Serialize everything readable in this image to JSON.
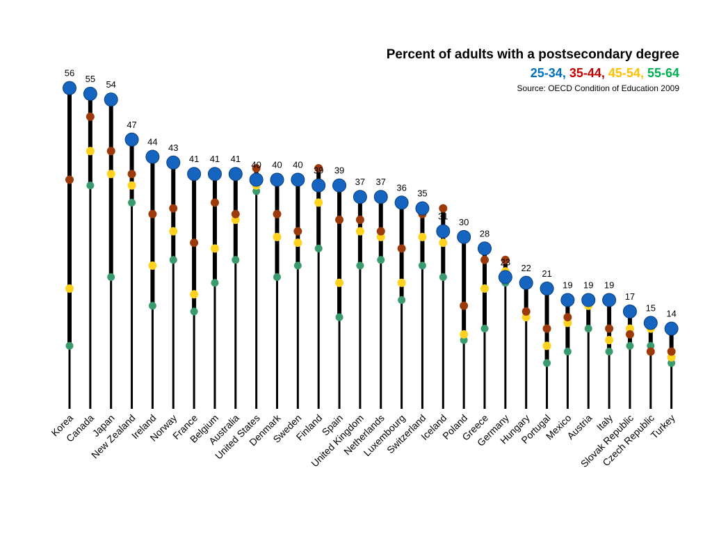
{
  "chart_data": {
    "type": "scatter",
    "title": "Percent of adults with a postsecondary degree",
    "source": "Source: OECD Condition of Education 2009",
    "legend_placement": "top-right",
    "series": [
      {
        "name": "25-34",
        "color": "#1565C0"
      },
      {
        "name": "35-44",
        "color": "#9C3A0C"
      },
      {
        "name": "45-54",
        "color": "#FFD21F"
      },
      {
        "name": "55-64",
        "color": "#3A9B6E"
      }
    ],
    "legend_colors": {
      "25-34": "#0070C0",
      "35-44": "#C00000",
      "45-54": "#FFC000",
      "55-64": "#00B050"
    },
    "categories": [
      "Korea",
      "Canada",
      "Japan",
      "New Zealand",
      "Ireland",
      "Norway",
      "France",
      "Belgium",
      "Australia",
      "United States",
      "Denmark",
      "Sweden",
      "Finland",
      "Spain",
      "United Kingdom",
      "Netherlands",
      "Luxembourg",
      "Switzerland",
      "Iceland",
      "Poland",
      "Greece",
      "Germany",
      "Hungary",
      "Portugal",
      "Mexico",
      "Austria",
      "Italy",
      "Slovak Republic",
      "Czech Republic",
      "Turkey"
    ],
    "data_labels": [
      "56",
      "55",
      "54",
      "47",
      "44",
      "43",
      "41",
      "41",
      "41",
      "40",
      "40",
      "40",
      "39",
      "39",
      "37",
      "37",
      "36",
      "35",
      "31",
      "30",
      "28",
      "23",
      "22",
      "21",
      "19",
      "19",
      "19",
      "17",
      "15",
      "14"
    ],
    "values": {
      "25-34": [
        56,
        55,
        54,
        47,
        44,
        43,
        41,
        41,
        41,
        40,
        40,
        40,
        39,
        39,
        37,
        37,
        36,
        35,
        31,
        30,
        28,
        23,
        22,
        21,
        19,
        19,
        19,
        17,
        15,
        14
      ],
      "35-44": [
        40,
        51,
        45,
        41,
        34,
        35,
        29,
        36,
        34,
        42,
        34,
        31,
        42,
        33,
        33,
        31,
        28,
        34,
        35,
        18,
        26,
        26,
        17,
        14,
        16,
        19,
        14,
        13,
        10,
        10
      ],
      "45-54": [
        21,
        45,
        41,
        39,
        25,
        31,
        20,
        28,
        33,
        39,
        30,
        29,
        36,
        22,
        31,
        30,
        22,
        30,
        29,
        13,
        21,
        24,
        16,
        11,
        15,
        18,
        12,
        14,
        14,
        9
      ],
      "55-64": [
        11,
        39,
        23,
        36,
        18,
        26,
        17,
        22,
        26,
        38,
        23,
        25,
        28,
        16,
        25,
        26,
        19,
        25,
        23,
        12,
        14,
        22,
        16,
        8,
        10,
        14,
        10,
        11,
        11,
        8
      ]
    },
    "ylim": [
      0,
      63
    ],
    "grid": false,
    "axes_visible": false
  }
}
